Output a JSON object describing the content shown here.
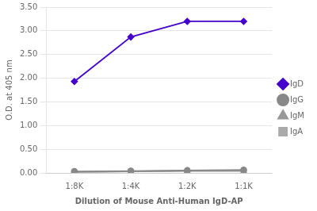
{
  "chart_data": {
    "type": "line",
    "xlabel": "Dilution of Mouse Anti-Human IgD-AP",
    "ylabel": "O.D. at 405 nm",
    "categories": [
      "1:8K",
      "1:4K",
      "1:2K",
      "1:1K"
    ],
    "series": [
      {
        "name": "IgD",
        "color": "#4400CC",
        "marker": "diamond",
        "values": [
          1.93,
          2.87,
          3.2,
          3.2
        ]
      },
      {
        "name": "IgG",
        "color": "#888888",
        "marker": "circle",
        "values": [
          0.03,
          0.04,
          0.05,
          0.06
        ]
      },
      {
        "name": "IgM",
        "color": "#999999",
        "marker": "triangle",
        "values": [
          0.02,
          0.03,
          0.04,
          0.04
        ]
      },
      {
        "name": "IgA",
        "color": "#aaaaaa",
        "marker": "square",
        "values": [
          0.02,
          0.03,
          0.05,
          0.06
        ]
      }
    ],
    "ylim": [
      0.0,
      3.5
    ],
    "yticks": [
      {
        "value": 0.0,
        "label": "0.00"
      },
      {
        "value": 0.5,
        "label": "0.50"
      },
      {
        "value": 1.0,
        "label": "1.00"
      },
      {
        "value": 1.5,
        "label": "1.50"
      },
      {
        "value": 2.0,
        "label": "2.00"
      },
      {
        "value": 2.5,
        "label": "2.50"
      },
      {
        "value": 3.0,
        "label": "3.00"
      },
      {
        "value": 3.5,
        "label": "3.50"
      }
    ],
    "grid": "y",
    "legend": "right"
  }
}
